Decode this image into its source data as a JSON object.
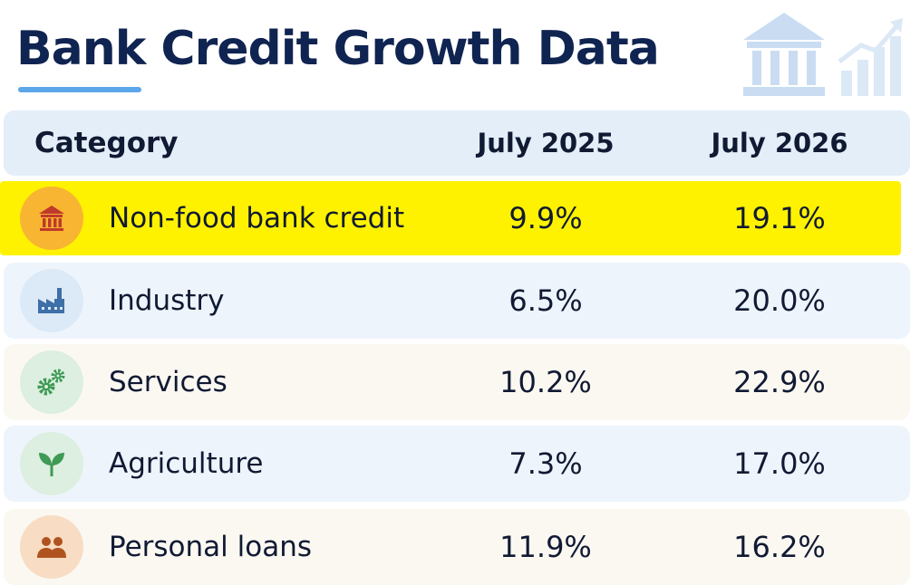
{
  "title": "Bank Credit Growth Data",
  "colors": {
    "title": "#0f2451",
    "accent": "#5ba7ea",
    "highlight": "#fff200",
    "header_bg": "#e3eef9"
  },
  "decor": {
    "icons": [
      "bank-building-icon",
      "growth-chart-icon"
    ]
  },
  "chart_data": {
    "type": "table",
    "columns": [
      "Category",
      "July 2025",
      "July 2026"
    ],
    "highlighted_row": "Non-food bank credit",
    "rows": [
      {
        "category": "Non-food bank credit",
        "icon": "bank-icon",
        "icon_color": "#c0392b",
        "icon_bg": "#f7b531",
        "july_2025": "9.9%",
        "july_2026": "19.1%"
      },
      {
        "category": "Industry",
        "icon": "factory-icon",
        "icon_color": "#3d6fa8",
        "icon_bg": "#dce9f6",
        "july_2025": "6.5%",
        "july_2026": "20.0%"
      },
      {
        "category": "Services",
        "icon": "gears-icon",
        "icon_color": "#3e9a55",
        "icon_bg": "#dcefe0",
        "july_2025": "10.2%",
        "july_2026": "22.9%"
      },
      {
        "category": "Agriculture",
        "icon": "sprout-icon",
        "icon_color": "#3e9a55",
        "icon_bg": "#dcefe0",
        "july_2025": "7.3%",
        "july_2026": "17.0%"
      },
      {
        "category": "Personal loans",
        "icon": "people-icon",
        "icon_color": "#b0541f",
        "icon_bg": "#f8dcc4",
        "july_2025": "11.9%",
        "july_2026": "16.2%"
      }
    ]
  }
}
